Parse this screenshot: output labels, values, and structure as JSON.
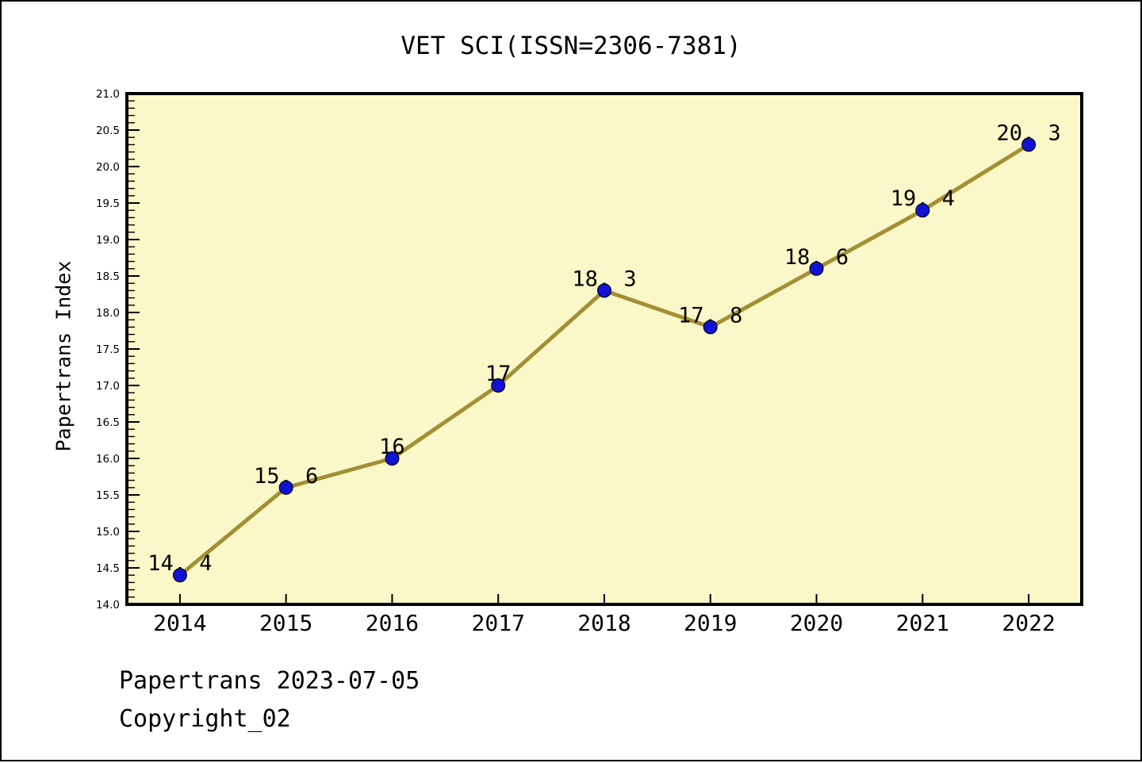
{
  "header": {
    "title": "VET SCI(ISSN=2306-7381)"
  },
  "footer": {
    "credit": "Papertrans 2023-07-05",
    "copyright": "Copyright_02"
  },
  "chart_data": {
    "type": "line",
    "title": "VET SCI(ISSN=2306-7381)",
    "x": [
      2014,
      2015,
      2016,
      2017,
      2018,
      2019,
      2020,
      2021,
      2022
    ],
    "series": [
      {
        "name": "Papertrans Index",
        "values": [
          14.4,
          15.6,
          16,
          17,
          18.3,
          17.8,
          18.6,
          19.4,
          20.3
        ]
      }
    ],
    "point_labels": [
      "14.4",
      "15.6",
      "16",
      "17",
      "18.3",
      "17.8",
      "18.6",
      "19.4",
      "20.3"
    ],
    "x_tick_labels": [
      "2014",
      "2015",
      "2016",
      "2017",
      "2018",
      "2019",
      "2020",
      "2021",
      "2022"
    ],
    "xlabel": "",
    "ylabel": "Papertrans Index",
    "xlim": [
      2013.5,
      2022.5
    ],
    "ylim": [
      14.0,
      21.0
    ],
    "y_major_step": 0.5,
    "y_minor_step": 0.1,
    "grid": false,
    "legend": "none",
    "colors": {
      "line": "#A38F35",
      "marker": "#1212D2",
      "marker_edge": "#000000",
      "plot_background": "#FAF8C8",
      "spine": "#000000",
      "text": "#000000"
    }
  }
}
